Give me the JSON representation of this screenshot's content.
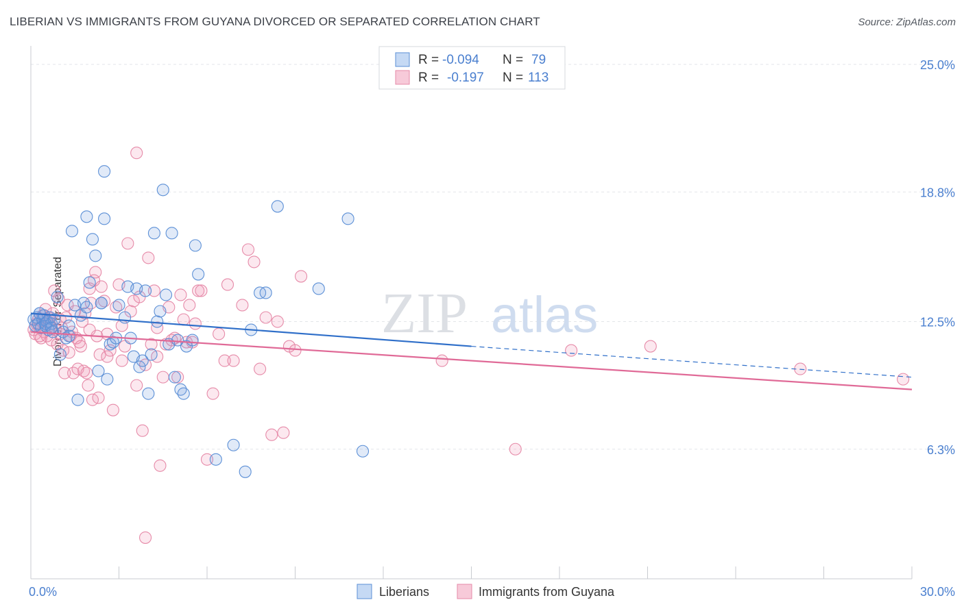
{
  "header": {
    "title": "LIBERIAN VS IMMIGRANTS FROM GUYANA DIVORCED OR SEPARATED CORRELATION CHART",
    "source": "Source: ZipAtlas.com"
  },
  "watermark": {
    "zip": "ZIP",
    "atlas": "atlas"
  },
  "colors": {
    "blue": "#5b8fd6",
    "blue_line": "#2f6fc9",
    "pink": "#e68aa8",
    "pink_line": "#e06a97",
    "tick_label": "#4a7fcf"
  },
  "legend_top": {
    "rows": [
      {
        "r_label": "R =",
        "r_value": "-0.094",
        "n_label": "N =",
        "n_value": "79"
      },
      {
        "r_label": "R =",
        "r_value": "-0.197",
        "n_label": "N =",
        "n_value": "113"
      }
    ]
  },
  "chart_data": {
    "type": "scatter",
    "title": "LIBERIAN VS IMMIGRANTS FROM GUYANA DIVORCED OR SEPARATED CORRELATION CHART",
    "ylabel": "Divorced or Separated",
    "xlim": [
      0,
      30
    ],
    "ylim": [
      0,
      25.7
    ],
    "x_tick_labels": [
      "0.0%",
      "30.0%"
    ],
    "y_ticks": [
      6.3,
      12.5,
      18.8,
      25.0
    ],
    "y_tick_labels": [
      "6.3%",
      "12.5%",
      "18.8%",
      "25.0%"
    ],
    "grid": true,
    "legend_position": "bottom",
    "series": [
      {
        "name": "Liberians",
        "color": "#5b8fd6",
        "trend": {
          "x": [
            0.0,
            15.0
          ],
          "y": [
            12.9,
            11.3
          ]
        },
        "trend_dashed": {
          "x": [
            15.0,
            30.0
          ],
          "y": [
            11.3,
            9.8
          ]
        },
        "points": [
          [
            0.1,
            12.6
          ],
          [
            0.15,
            12.3
          ],
          [
            0.2,
            12.7
          ],
          [
            0.25,
            12.4
          ],
          [
            0.3,
            12.9
          ],
          [
            0.35,
            12.2
          ],
          [
            0.4,
            12.6
          ],
          [
            0.45,
            12.8
          ],
          [
            0.5,
            12.3
          ],
          [
            0.55,
            12.5
          ],
          [
            0.6,
            12.1
          ],
          [
            0.65,
            12.7
          ],
          [
            0.7,
            12.4
          ],
          [
            0.75,
            12.0
          ],
          [
            0.8,
            12.6
          ],
          [
            0.9,
            13.7
          ],
          [
            1.0,
            10.9
          ],
          [
            1.1,
            12.0
          ],
          [
            1.2,
            11.7
          ],
          [
            1.3,
            12.3
          ],
          [
            1.4,
            16.9
          ],
          [
            1.5,
            13.3
          ],
          [
            1.6,
            8.7
          ],
          [
            1.7,
            12.8
          ],
          [
            1.8,
            13.4
          ],
          [
            1.9,
            13.2
          ],
          [
            2.0,
            14.4
          ],
          [
            2.1,
            16.5
          ],
          [
            2.2,
            15.7
          ],
          [
            2.3,
            10.1
          ],
          [
            2.4,
            13.4
          ],
          [
            2.5,
            17.5
          ],
          [
            2.6,
            9.7
          ],
          [
            2.7,
            11.4
          ],
          [
            2.8,
            11.5
          ],
          [
            2.9,
            11.7
          ],
          [
            3.0,
            13.3
          ],
          [
            3.2,
            12.7
          ],
          [
            3.3,
            14.2
          ],
          [
            3.4,
            11.7
          ],
          [
            3.5,
            10.8
          ],
          [
            3.6,
            14.1
          ],
          [
            3.7,
            10.3
          ],
          [
            3.8,
            10.6
          ],
          [
            3.9,
            14.0
          ],
          [
            4.0,
            9.0
          ],
          [
            4.1,
            10.9
          ],
          [
            4.2,
            16.8
          ],
          [
            4.3,
            12.5
          ],
          [
            4.4,
            13.0
          ],
          [
            4.5,
            18.9
          ],
          [
            4.6,
            13.8
          ],
          [
            4.7,
            11.4
          ],
          [
            4.8,
            16.8
          ],
          [
            4.9,
            9.8
          ],
          [
            5.0,
            11.6
          ],
          [
            5.1,
            9.2
          ],
          [
            5.2,
            9.0
          ],
          [
            5.3,
            11.3
          ],
          [
            5.5,
            11.6
          ],
          [
            5.6,
            16.2
          ],
          [
            5.7,
            14.8
          ],
          [
            6.3,
            5.8
          ],
          [
            6.9,
            6.5
          ],
          [
            7.3,
            5.2
          ],
          [
            7.5,
            12.1
          ],
          [
            7.8,
            13.9
          ],
          [
            8.0,
            13.9
          ],
          [
            8.4,
            18.1
          ],
          [
            9.8,
            14.1
          ],
          [
            10.8,
            17.5
          ],
          [
            11.3,
            6.2
          ],
          [
            2.5,
            19.8
          ],
          [
            1.9,
            17.6
          ],
          [
            0.3,
            12.9
          ],
          [
            0.5,
            12.4
          ],
          [
            1.3,
            11.8
          ],
          [
            0.7,
            12.2
          ],
          [
            2.4,
            13.4
          ]
        ]
      },
      {
        "name": "Immigrants from Guyana",
        "color": "#e68aa8",
        "trend": {
          "x": [
            0.0,
            30.0
          ],
          "y": [
            12.0,
            9.2
          ]
        },
        "points": [
          [
            0.1,
            12.1
          ],
          [
            0.15,
            11.9
          ],
          [
            0.2,
            12.4
          ],
          [
            0.25,
            12.6
          ],
          [
            0.3,
            12.2
          ],
          [
            0.35,
            11.7
          ],
          [
            0.4,
            12.8
          ],
          [
            0.45,
            12.0
          ],
          [
            0.5,
            13.1
          ],
          [
            0.55,
            11.8
          ],
          [
            0.6,
            12.5
          ],
          [
            0.65,
            12.3
          ],
          [
            0.7,
            11.6
          ],
          [
            0.75,
            12.9
          ],
          [
            0.8,
            14.0
          ],
          [
            0.85,
            12.1
          ],
          [
            0.9,
            11.4
          ],
          [
            0.95,
            13.6
          ],
          [
            1.0,
            12.6
          ],
          [
            1.05,
            12.2
          ],
          [
            1.1,
            11.1
          ],
          [
            1.15,
            10.0
          ],
          [
            1.2,
            12.7
          ],
          [
            1.25,
            13.3
          ],
          [
            1.3,
            11.0
          ],
          [
            1.35,
            11.8
          ],
          [
            1.4,
            12.0
          ],
          [
            1.45,
            10.0
          ],
          [
            1.5,
            13.0
          ],
          [
            1.55,
            11.7
          ],
          [
            1.6,
            10.2
          ],
          [
            1.65,
            11.5
          ],
          [
            1.7,
            11.3
          ],
          [
            1.75,
            12.5
          ],
          [
            1.8,
            10.1
          ],
          [
            1.85,
            12.9
          ],
          [
            1.9,
            10.0
          ],
          [
            1.95,
            9.4
          ],
          [
            2.0,
            14.1
          ],
          [
            2.05,
            13.4
          ],
          [
            2.1,
            8.7
          ],
          [
            2.15,
            14.5
          ],
          [
            2.2,
            14.9
          ],
          [
            2.25,
            11.8
          ],
          [
            2.3,
            8.8
          ],
          [
            2.35,
            10.9
          ],
          [
            2.4,
            14.2
          ],
          [
            2.5,
            13.5
          ],
          [
            2.6,
            10.8
          ],
          [
            2.7,
            11.1
          ],
          [
            2.8,
            8.2
          ],
          [
            2.9,
            13.2
          ],
          [
            3.0,
            14.3
          ],
          [
            3.1,
            12.3
          ],
          [
            3.2,
            11.3
          ],
          [
            3.3,
            16.3
          ],
          [
            3.4,
            13.0
          ],
          [
            3.5,
            13.5
          ],
          [
            3.6,
            9.4
          ],
          [
            3.7,
            13.7
          ],
          [
            3.8,
            7.2
          ],
          [
            3.9,
            10.4
          ],
          [
            4.0,
            15.6
          ],
          [
            4.1,
            11.4
          ],
          [
            4.2,
            14.0
          ],
          [
            4.3,
            10.8
          ],
          [
            4.4,
            5.5
          ],
          [
            4.5,
            9.8
          ],
          [
            4.6,
            11.4
          ],
          [
            4.7,
            13.2
          ],
          [
            4.8,
            11.6
          ],
          [
            4.9,
            11.7
          ],
          [
            5.0,
            9.8
          ],
          [
            5.1,
            13.8
          ],
          [
            5.2,
            12.6
          ],
          [
            5.3,
            11.5
          ],
          [
            5.4,
            13.3
          ],
          [
            5.5,
            11.5
          ],
          [
            5.6,
            12.4
          ],
          [
            5.7,
            14.0
          ],
          [
            5.8,
            14.0
          ],
          [
            6.0,
            5.8
          ],
          [
            6.2,
            9.0
          ],
          [
            6.4,
            11.9
          ],
          [
            6.6,
            10.6
          ],
          [
            6.7,
            14.3
          ],
          [
            6.9,
            10.6
          ],
          [
            7.2,
            13.3
          ],
          [
            7.4,
            16.0
          ],
          [
            7.6,
            15.4
          ],
          [
            7.8,
            10.2
          ],
          [
            8.0,
            12.7
          ],
          [
            8.2,
            7.0
          ],
          [
            8.4,
            12.5
          ],
          [
            8.6,
            7.1
          ],
          [
            8.8,
            11.3
          ],
          [
            9.0,
            11.1
          ],
          [
            9.2,
            14.7
          ],
          [
            3.6,
            20.7
          ],
          [
            3.9,
            2.0
          ],
          [
            14.0,
            10.6
          ],
          [
            16.5,
            6.3
          ],
          [
            18.4,
            11.1
          ],
          [
            21.1,
            11.3
          ],
          [
            26.2,
            10.2
          ],
          [
            29.7,
            9.7
          ],
          [
            0.3,
            11.8
          ],
          [
            0.6,
            12.7
          ],
          [
            1.0,
            11.9
          ],
          [
            2.0,
            12.1
          ],
          [
            2.6,
            11.9
          ],
          [
            3.1,
            10.6
          ],
          [
            4.3,
            12.2
          ]
        ]
      }
    ]
  },
  "legend_bottom": {
    "items": [
      {
        "label": "Liberians"
      },
      {
        "label": "Immigrants from Guyana"
      }
    ]
  }
}
